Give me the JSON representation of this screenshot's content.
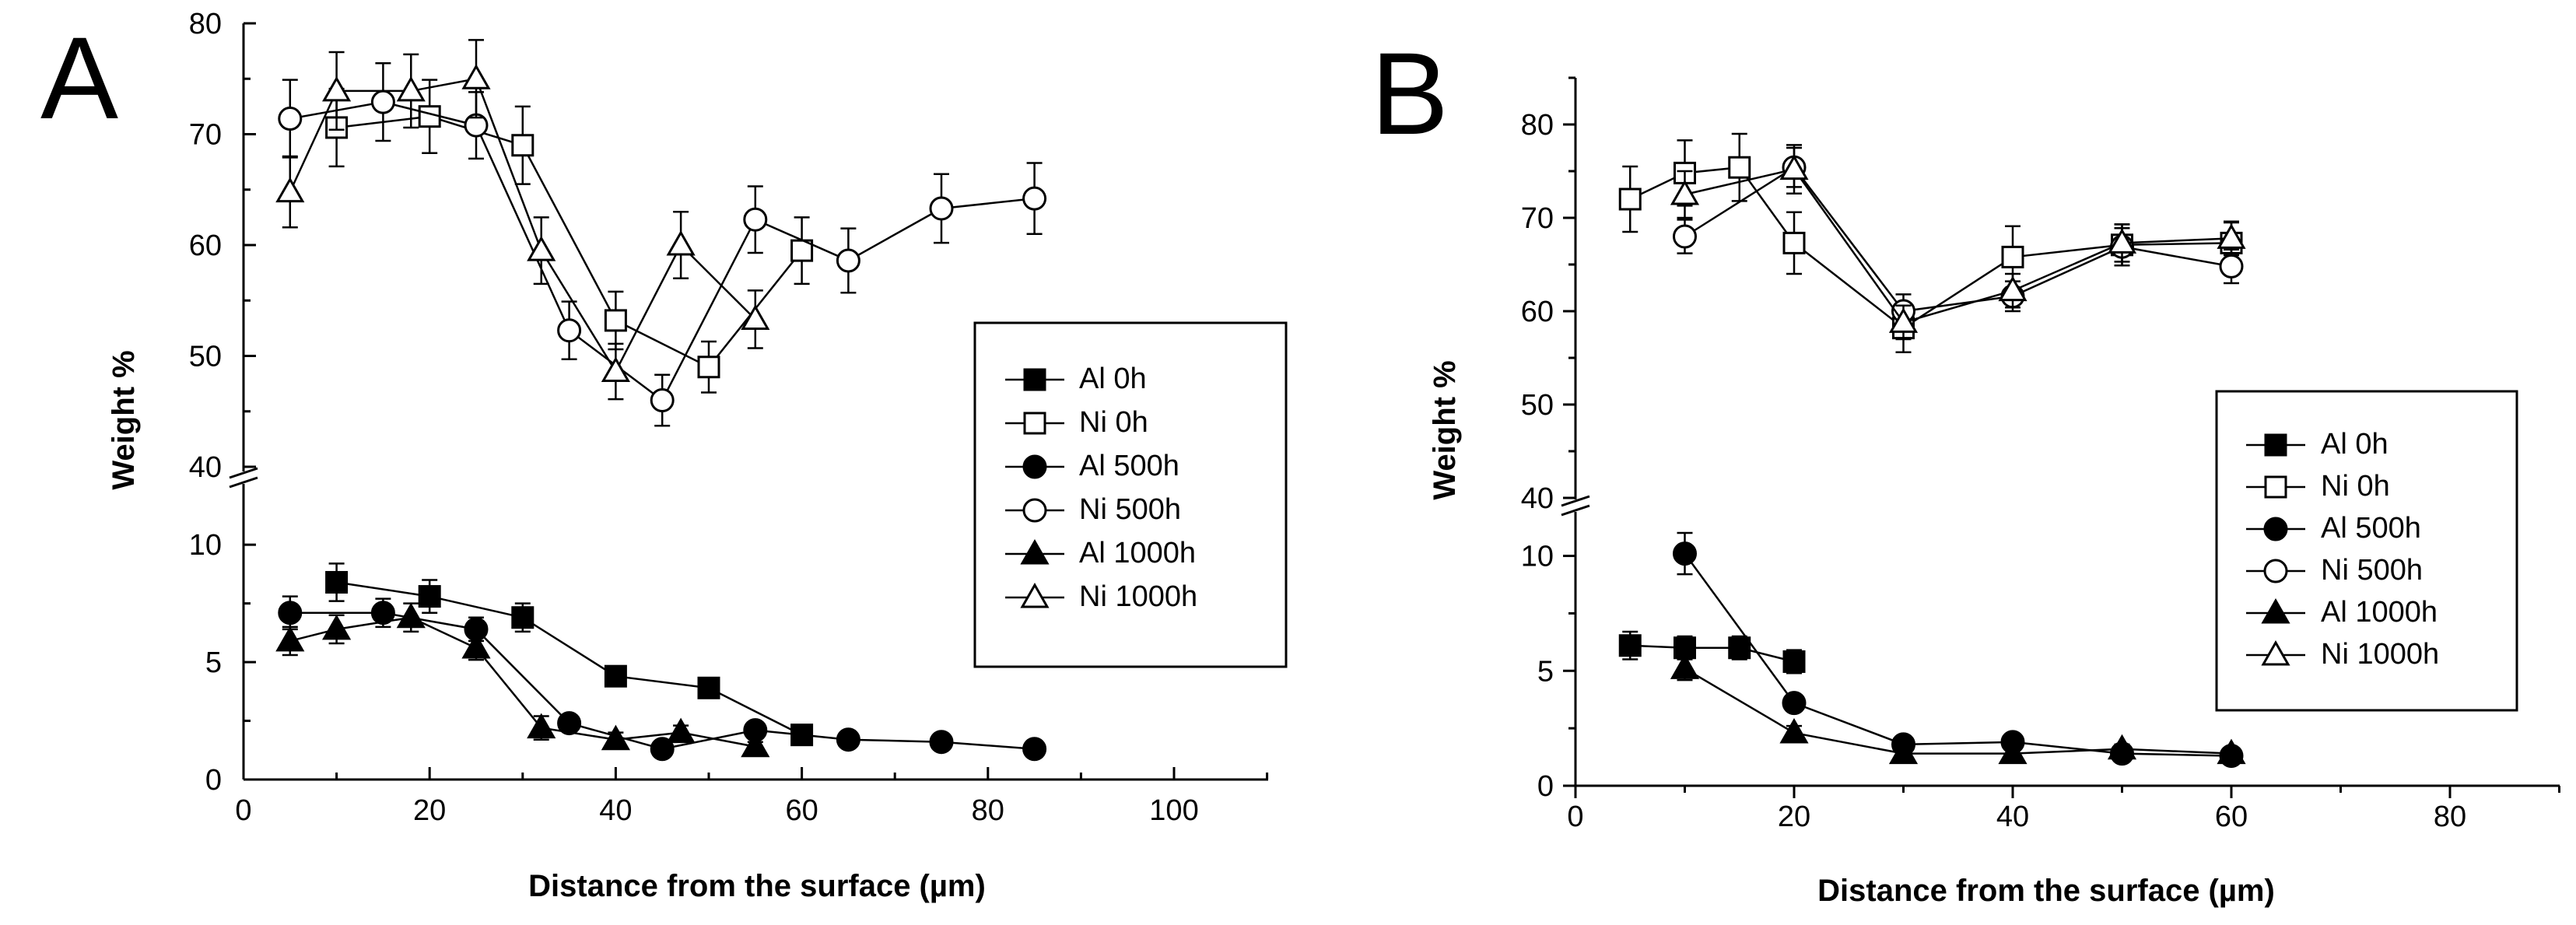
{
  "chart_data": [
    {
      "panel_label": "A",
      "type": "line",
      "xlabel": "Distance from the surface (µm)",
      "ylabel": "Weight %",
      "xlim": [
        0,
        110
      ],
      "x_ticks": [
        0,
        20,
        40,
        60,
        80,
        100
      ],
      "y_axis_break": true,
      "ylim_lower": [
        0,
        11
      ],
      "ylim_upper": [
        40,
        80
      ],
      "y_ticks_lower": [
        0,
        5,
        10
      ],
      "y_ticks_upper": [
        40,
        50,
        60,
        70,
        80
      ],
      "legend_position": "center-right",
      "series": [
        {
          "name": "Al 0h",
          "marker": "square",
          "filled": true,
          "x": [
            10,
            20,
            30,
            40,
            50,
            60
          ],
          "y": [
            8.4,
            7.8,
            6.9,
            4.4,
            3.9,
            1.9
          ],
          "err": [
            0.8,
            0.7,
            0.6,
            0.3,
            0.3,
            0.2
          ]
        },
        {
          "name": "Ni 0h",
          "marker": "square",
          "filled": false,
          "x": [
            10,
            20,
            30,
            40,
            50,
            60
          ],
          "y": [
            70.6,
            71.6,
            69.0,
            53.2,
            49.0,
            59.5
          ],
          "err": [
            3.5,
            3.3,
            3.5,
            2.6,
            2.3,
            3.0
          ]
        },
        {
          "name": "Al 500h",
          "marker": "circle",
          "filled": true,
          "x": [
            5,
            15,
            25,
            35,
            45,
            55,
            65,
            75,
            85
          ],
          "y": [
            7.1,
            7.1,
            6.4,
            2.4,
            1.3,
            2.1,
            1.7,
            1.6,
            1.3
          ],
          "err": [
            0.7,
            0.6,
            0.5,
            0.3,
            0.2,
            0.3,
            0.2,
            0.2,
            0.2
          ]
        },
        {
          "name": "Ni 500h",
          "marker": "circle",
          "filled": false,
          "x": [
            5,
            15,
            25,
            35,
            45,
            55,
            65,
            75,
            85
          ],
          "y": [
            71.4,
            72.9,
            70.8,
            52.3,
            46.0,
            62.3,
            58.6,
            63.3,
            64.2
          ],
          "err": [
            3.5,
            3.5,
            3.0,
            2.6,
            2.3,
            3.0,
            2.9,
            3.1,
            3.2
          ]
        },
        {
          "name": "Al 1000h",
          "marker": "triangle",
          "filled": true,
          "x": [
            5,
            10,
            18,
            25,
            32,
            40,
            47,
            55
          ],
          "y": [
            5.9,
            6.4,
            6.9,
            5.6,
            2.2,
            1.7,
            2.0,
            1.4
          ],
          "err": [
            0.6,
            0.6,
            0.6,
            0.5,
            0.5,
            0.3,
            0.3,
            0.2
          ]
        },
        {
          "name": "Ni 1000h",
          "marker": "triangle",
          "filled": false,
          "x": [
            5,
            10,
            18,
            25,
            32,
            40,
            47,
            55
          ],
          "y": [
            64.8,
            73.9,
            73.9,
            75.0,
            59.5,
            48.6,
            60.0,
            53.3
          ],
          "err": [
            3.2,
            3.5,
            3.3,
            3.5,
            3.0,
            2.5,
            3.0,
            2.6
          ]
        }
      ]
    },
    {
      "panel_label": "B",
      "type": "line",
      "xlabel": "Distance from the surface (µm)",
      "ylabel": "Weight %",
      "xlim": [
        0,
        90
      ],
      "x_ticks": [
        0,
        20,
        40,
        60,
        80
      ],
      "y_axis_break": true,
      "ylim_lower": [
        0,
        11
      ],
      "ylim_upper": [
        40,
        85
      ],
      "y_ticks_lower": [
        0,
        5,
        10
      ],
      "y_ticks_upper": [
        40,
        50,
        60,
        70,
        80
      ],
      "legend_position": "center-right",
      "series": [
        {
          "name": "Al 0h",
          "marker": "square",
          "filled": true,
          "x": [
            5,
            10,
            15,
            20
          ],
          "y": [
            6.1,
            6.0,
            6.0,
            5.4
          ],
          "err": [
            0.6,
            0.5,
            0.5,
            0.5
          ]
        },
        {
          "name": "Ni 0h",
          "marker": "square",
          "filled": false,
          "x": [
            5,
            10,
            15,
            20,
            30,
            40,
            50,
            60
          ],
          "y": [
            72.0,
            74.8,
            75.4,
            67.3,
            58.2,
            65.8,
            67.1,
            67.3
          ],
          "err": [
            3.5,
            3.5,
            3.6,
            3.3,
            2.6,
            3.3,
            2.2,
            2.2
          ]
        },
        {
          "name": "Al 500h",
          "marker": "circle",
          "filled": true,
          "x": [
            10,
            20,
            30,
            40,
            50,
            60
          ],
          "y": [
            10.1,
            3.6,
            1.8,
            1.9,
            1.4,
            1.3
          ],
          "err": [
            0.9,
            0.3,
            0.2,
            0.2,
            0.2,
            0.2
          ]
        },
        {
          "name": "Ni 500h",
          "marker": "circle",
          "filled": false,
          "x": [
            10,
            20,
            30,
            40,
            50,
            60
          ],
          "y": [
            68.0,
            75.4,
            60.0,
            61.6,
            66.9,
            64.8
          ],
          "err": [
            1.8,
            2.1,
            1.8,
            1.6,
            2.0,
            1.8
          ]
        },
        {
          "name": "Al 1000h",
          "marker": "triangle",
          "filled": true,
          "x": [
            10,
            20,
            30,
            40,
            50,
            60
          ],
          "y": [
            5.1,
            2.3,
            1.4,
            1.4,
            1.6,
            1.4
          ],
          "err": [
            0.5,
            0.3,
            0.2,
            0.2,
            0.2,
            0.2
          ]
        },
        {
          "name": "Ni 1000h",
          "marker": "triangle",
          "filled": false,
          "x": [
            10,
            20,
            30,
            40,
            50,
            60
          ],
          "y": [
            72.5,
            75.2,
            58.8,
            62.2,
            67.3,
            67.8
          ],
          "err": [
            2.5,
            2.6,
            1.8,
            1.8,
            2.0,
            1.8
          ]
        }
      ]
    }
  ]
}
